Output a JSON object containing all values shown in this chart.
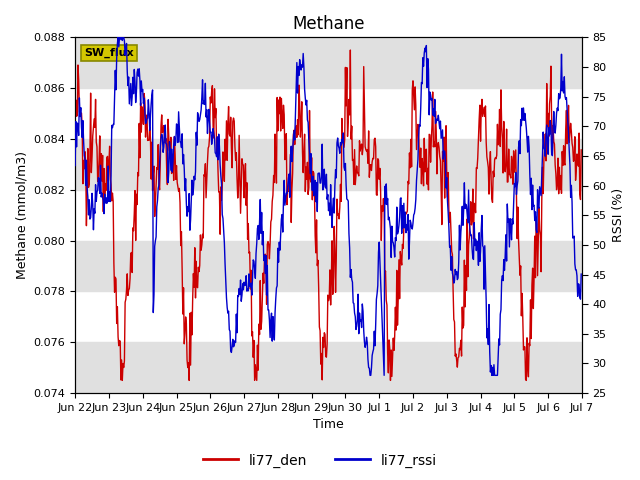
{
  "title": "Methane",
  "xlabel": "Time",
  "ylabel_left": "Methane (mmol/m3)",
  "ylabel_right": "RSSI (%)",
  "ylim_left": [
    0.074,
    0.088
  ],
  "ylim_right": [
    25,
    85
  ],
  "yticks_left": [
    0.074,
    0.076,
    0.078,
    0.08,
    0.082,
    0.084,
    0.086,
    0.088
  ],
  "yticks_right": [
    25,
    30,
    35,
    40,
    45,
    50,
    55,
    60,
    65,
    70,
    75,
    80,
    85
  ],
  "xtick_labels": [
    "Jun 22",
    "Jun 23",
    "Jun 24",
    "Jun 25",
    "Jun 26",
    "Jun 27",
    "Jun 28",
    "Jun 29",
    "Jun 30",
    "Jul 1",
    "Jul 2",
    "Jul 3",
    "Jul 4",
    "Jul 5",
    "Jul 6",
    "Jul 7"
  ],
  "color_den": "#cc0000",
  "color_rssi": "#0000cc",
  "legend_label_den": "li77_den",
  "legend_label_rssi": "li77_rssi",
  "annotation_text": "SW_flux",
  "annotation_bg": "#d4c800",
  "annotation_border": "#888800",
  "bg_band_color": "#e0e0e0",
  "line_width": 1.0,
  "title_fontsize": 12,
  "label_fontsize": 9,
  "tick_fontsize": 8,
  "legend_fontsize": 10
}
